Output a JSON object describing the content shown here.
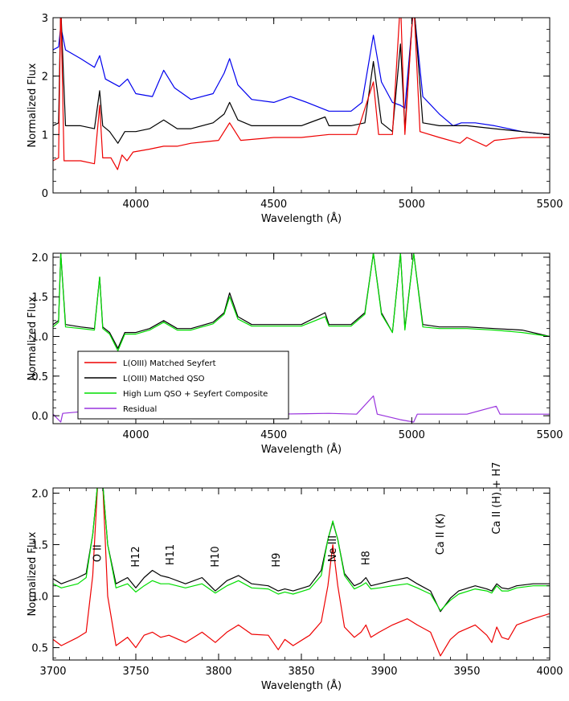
{
  "chart_data": [
    {
      "type": "line",
      "xlabel": "Wavelength (Å)",
      "ylabel": "Normalized Flux",
      "xlim": [
        3700,
        5500
      ],
      "ylim": [
        0,
        3
      ],
      "xticks": [
        4000,
        4500,
        5000,
        5500
      ],
      "yticks": [
        0,
        1,
        2,
        3
      ],
      "grid": false,
      "series": [
        {
          "color": "#0000ee",
          "x": [
            3700,
            3720,
            3728,
            3745,
            3800,
            3850,
            3869,
            3890,
            3940,
            3970,
            4000,
            4060,
            4101,
            4140,
            4200,
            4280,
            4320,
            4340,
            4370,
            4420,
            4500,
            4560,
            4620,
            4700,
            4780,
            4820,
            4861,
            4890,
            4930,
            4959,
            4975,
            5007,
            5040,
            5100,
            5150,
            5180,
            5230,
            5300,
            5400,
            5500
          ],
          "y": [
            2.45,
            2.5,
            2.85,
            2.45,
            2.3,
            2.15,
            2.35,
            1.95,
            1.82,
            1.95,
            1.7,
            1.65,
            2.1,
            1.8,
            1.6,
            1.7,
            2.05,
            2.3,
            1.85,
            1.6,
            1.55,
            1.65,
            1.55,
            1.4,
            1.4,
            1.55,
            2.7,
            1.9,
            1.55,
            1.5,
            1.45,
            3.2,
            1.65,
            1.35,
            1.15,
            1.2,
            1.2,
            1.15,
            1.05,
            1.0
          ]
        },
        {
          "color": "#000000",
          "x": [
            3700,
            3720,
            3728,
            3745,
            3800,
            3850,
            3869,
            3880,
            3905,
            3935,
            3960,
            4000,
            4050,
            4101,
            4150,
            4200,
            4280,
            4320,
            4340,
            4370,
            4420,
            4500,
            4600,
            4686,
            4700,
            4780,
            4830,
            4861,
            4890,
            4930,
            4959,
            4975,
            5007,
            5040,
            5100,
            5200,
            5300,
            5400,
            5500
          ],
          "y": [
            1.15,
            1.2,
            3.2,
            1.15,
            1.15,
            1.1,
            1.75,
            1.15,
            1.05,
            0.85,
            1.05,
            1.05,
            1.1,
            1.25,
            1.1,
            1.1,
            1.2,
            1.35,
            1.55,
            1.25,
            1.15,
            1.15,
            1.15,
            1.3,
            1.15,
            1.15,
            1.2,
            2.25,
            1.2,
            1.05,
            2.55,
            1.1,
            3.3,
            1.2,
            1.15,
            1.15,
            1.1,
            1.05,
            1.0
          ]
        },
        {
          "color": "#ee0000",
          "x": [
            3700,
            3720,
            3728,
            3740,
            3800,
            3850,
            3869,
            3880,
            3910,
            3934,
            3950,
            3968,
            3990,
            4050,
            4101,
            4150,
            4200,
            4300,
            4340,
            4380,
            4500,
            4600,
            4700,
            4800,
            4861,
            4880,
            4930,
            4959,
            4975,
            5007,
            5030,
            5100,
            5175,
            5200,
            5270,
            5300,
            5400,
            5500
          ],
          "y": [
            0.55,
            0.6,
            3.3,
            0.55,
            0.55,
            0.5,
            1.5,
            0.6,
            0.6,
            0.4,
            0.65,
            0.55,
            0.7,
            0.75,
            0.8,
            0.8,
            0.85,
            0.9,
            1.2,
            0.9,
            0.95,
            0.95,
            1.0,
            1.0,
            1.9,
            1.0,
            1.0,
            3.3,
            1.0,
            3.3,
            1.05,
            0.95,
            0.85,
            0.95,
            0.8,
            0.9,
            0.95,
            0.95
          ]
        }
      ]
    },
    {
      "type": "line",
      "xlabel": "Wavelength (Å)",
      "ylabel": "Normalized Flux",
      "xlim": [
        3700,
        5500
      ],
      "ylim": [
        -0.1,
        2.05
      ],
      "xticks": [
        4000,
        4500,
        5000,
        5500
      ],
      "yticks": [
        0.0,
        0.5,
        1.0,
        1.5,
        2.0
      ],
      "tick_labels_y": [
        "0.0",
        "0.5",
        "1.0",
        "1.5",
        "2.0"
      ],
      "grid": false,
      "legend_position": "lower-left",
      "series": [
        {
          "name": "L(OIII) Matched Seyfert",
          "color": "#ee0000",
          "x": [],
          "y": []
        },
        {
          "name": "L(OIII) Matched QSO",
          "color": "#000000",
          "x": [
            3700,
            3720,
            3728,
            3745,
            3800,
            3850,
            3869,
            3880,
            3905,
            3935,
            3960,
            4000,
            4050,
            4101,
            4150,
            4200,
            4280,
            4320,
            4340,
            4370,
            4420,
            4500,
            4600,
            4686,
            4700,
            4780,
            4830,
            4861,
            4890,
            4930,
            4959,
            4975,
            5007,
            5040,
            5100,
            5200,
            5300,
            5400,
            5500
          ],
          "y": [
            1.15,
            1.2,
            2.05,
            1.15,
            1.12,
            1.1,
            1.75,
            1.12,
            1.05,
            0.85,
            1.05,
            1.05,
            1.1,
            1.2,
            1.1,
            1.1,
            1.18,
            1.3,
            1.55,
            1.25,
            1.15,
            1.15,
            1.15,
            1.3,
            1.15,
            1.15,
            1.3,
            2.05,
            1.3,
            1.05,
            2.05,
            1.1,
            2.05,
            1.15,
            1.12,
            1.12,
            1.1,
            1.08,
            1.0
          ]
        },
        {
          "name": "High Lum QSO + Seyfert Composite",
          "color": "#00dd00",
          "x": [
            3700,
            3720,
            3728,
            3745,
            3800,
            3850,
            3869,
            3880,
            3905,
            3935,
            3960,
            4000,
            4050,
            4101,
            4150,
            4200,
            4280,
            4320,
            4340,
            4370,
            4420,
            4500,
            4600,
            4686,
            4700,
            4780,
            4830,
            4861,
            4890,
            4930,
            4959,
            4975,
            5007,
            5040,
            5100,
            5200,
            5300,
            5400,
            5500
          ],
          "y": [
            1.12,
            1.18,
            2.05,
            1.12,
            1.1,
            1.08,
            1.75,
            1.1,
            1.03,
            0.82,
            1.03,
            1.03,
            1.08,
            1.18,
            1.08,
            1.08,
            1.16,
            1.28,
            1.5,
            1.22,
            1.13,
            1.13,
            1.13,
            1.25,
            1.13,
            1.13,
            1.28,
            2.05,
            1.28,
            1.05,
            2.05,
            1.08,
            2.05,
            1.12,
            1.1,
            1.1,
            1.08,
            1.05,
            1.0
          ]
        },
        {
          "name": "Residual",
          "color": "#9933dd",
          "x": [
            3700,
            3728,
            3735,
            3800,
            3900,
            4000,
            4101,
            4200,
            4340,
            4360,
            4500,
            4700,
            4800,
            4861,
            4875,
            4959,
            5007,
            5020,
            5200,
            5306,
            5320,
            5500
          ],
          "y": [
            0.02,
            -0.08,
            0.03,
            0.05,
            0.03,
            0.03,
            0.08,
            0.03,
            0.15,
            0.05,
            0.02,
            0.03,
            0.02,
            0.25,
            0.02,
            -0.05,
            -0.08,
            0.02,
            0.02,
            0.12,
            0.02,
            0.02
          ]
        }
      ]
    },
    {
      "type": "line",
      "xlabel": "Wavelength (Å)",
      "ylabel": "Normalized Flux",
      "xlim": [
        3700,
        4000
      ],
      "ylim": [
        0.38,
        2.05
      ],
      "xticks": [
        3700,
        3750,
        3800,
        3850,
        3900,
        3950,
        4000
      ],
      "yticks": [
        0.5,
        1.0,
        1.5,
        2.0
      ],
      "tick_labels_y": [
        "0.5",
        "1.0",
        "1.5",
        "2.0"
      ],
      "grid": false,
      "annotations": [
        {
          "text": "O II",
          "x": 3727,
          "y": 1.33
        },
        {
          "text": "H12",
          "x": 3750,
          "y": 1.28
        },
        {
          "text": "H11",
          "x": 3771,
          "y": 1.3
        },
        {
          "text": "H10",
          "x": 3798,
          "y": 1.28
        },
        {
          "text": "H9",
          "x": 3835,
          "y": 1.28
        },
        {
          "text": "Ne III",
          "x": 3869,
          "y": 1.33
        },
        {
          "text": "H8",
          "x": 3889,
          "y": 1.3
        },
        {
          "text": "Ca II (K)",
          "x": 3934,
          "y": 1.4
        },
        {
          "text": "Ca II (H) + H7",
          "x": 3968,
          "y": 1.6
        }
      ],
      "series": [
        {
          "color": "#ee0000",
          "x": [
            3700,
            3705,
            3715,
            3720,
            3724,
            3727,
            3730,
            3733,
            3738,
            3745,
            3750,
            3755,
            3760,
            3765,
            3770,
            3780,
            3790,
            3798,
            3805,
            3812,
            3820,
            3830,
            3836,
            3840,
            3845,
            3855,
            3862,
            3866,
            3869,
            3872,
            3876,
            3882,
            3886,
            3889,
            3892,
            3897,
            3905,
            3914,
            3920,
            3928,
            3934,
            3940,
            3945,
            3955,
            3962,
            3965,
            3968,
            3971,
            3975,
            3980,
            3990,
            4000
          ],
          "y": [
            0.58,
            0.52,
            0.6,
            0.65,
            1.2,
            2.1,
            2.1,
            1.0,
            0.52,
            0.6,
            0.5,
            0.62,
            0.65,
            0.6,
            0.62,
            0.55,
            0.65,
            0.55,
            0.65,
            0.72,
            0.63,
            0.62,
            0.48,
            0.58,
            0.52,
            0.62,
            0.75,
            1.1,
            1.5,
            1.1,
            0.7,
            0.6,
            0.65,
            0.72,
            0.6,
            0.65,
            0.72,
            0.78,
            0.72,
            0.65,
            0.42,
            0.58,
            0.65,
            0.72,
            0.62,
            0.55,
            0.7,
            0.6,
            0.58,
            0.72,
            0.78,
            0.83
          ]
        },
        {
          "color": "#000000",
          "x": [
            3700,
            3705,
            3715,
            3720,
            3724,
            3727,
            3730,
            3733,
            3738,
            3745,
            3750,
            3755,
            3760,
            3765,
            3770,
            3780,
            3790,
            3798,
            3805,
            3812,
            3820,
            3830,
            3836,
            3840,
            3845,
            3855,
            3862,
            3866,
            3869,
            3872,
            3876,
            3882,
            3886,
            3889,
            3892,
            3897,
            3905,
            3914,
            3920,
            3928,
            3934,
            3940,
            3945,
            3955,
            3962,
            3965,
            3968,
            3971,
            3975,
            3980,
            3990,
            4000
          ],
          "y": [
            1.17,
            1.12,
            1.18,
            1.22,
            1.6,
            2.1,
            2.1,
            1.5,
            1.12,
            1.18,
            1.08,
            1.18,
            1.25,
            1.2,
            1.18,
            1.12,
            1.18,
            1.05,
            1.15,
            1.2,
            1.12,
            1.1,
            1.05,
            1.07,
            1.05,
            1.1,
            1.25,
            1.55,
            1.72,
            1.55,
            1.22,
            1.1,
            1.13,
            1.18,
            1.1,
            1.12,
            1.15,
            1.18,
            1.12,
            1.05,
            0.85,
            0.98,
            1.05,
            1.1,
            1.07,
            1.05,
            1.12,
            1.08,
            1.07,
            1.1,
            1.12,
            1.12
          ]
        },
        {
          "color": "#00dd00",
          "x": [
            3700,
            3705,
            3715,
            3720,
            3724,
            3727,
            3730,
            3733,
            3738,
            3745,
            3750,
            3755,
            3760,
            3765,
            3770,
            3780,
            3790,
            3798,
            3805,
            3812,
            3820,
            3830,
            3836,
            3840,
            3845,
            3855,
            3862,
            3866,
            3869,
            3872,
            3876,
            3882,
            3886,
            3889,
            3892,
            3897,
            3905,
            3914,
            3920,
            3928,
            3934,
            3940,
            3945,
            3955,
            3962,
            3965,
            3968,
            3971,
            3975,
            3980,
            3990,
            4000
          ],
          "y": [
            1.12,
            1.08,
            1.12,
            1.18,
            1.6,
            2.1,
            2.1,
            1.5,
            1.08,
            1.12,
            1.04,
            1.1,
            1.15,
            1.12,
            1.12,
            1.08,
            1.12,
            1.03,
            1.1,
            1.15,
            1.08,
            1.07,
            1.02,
            1.04,
            1.02,
            1.07,
            1.2,
            1.55,
            1.73,
            1.55,
            1.2,
            1.07,
            1.1,
            1.13,
            1.07,
            1.08,
            1.1,
            1.12,
            1.08,
            1.02,
            0.86,
            0.96,
            1.02,
            1.07,
            1.05,
            1.03,
            1.1,
            1.05,
            1.05,
            1.08,
            1.1,
            1.1
          ]
        }
      ]
    }
  ]
}
